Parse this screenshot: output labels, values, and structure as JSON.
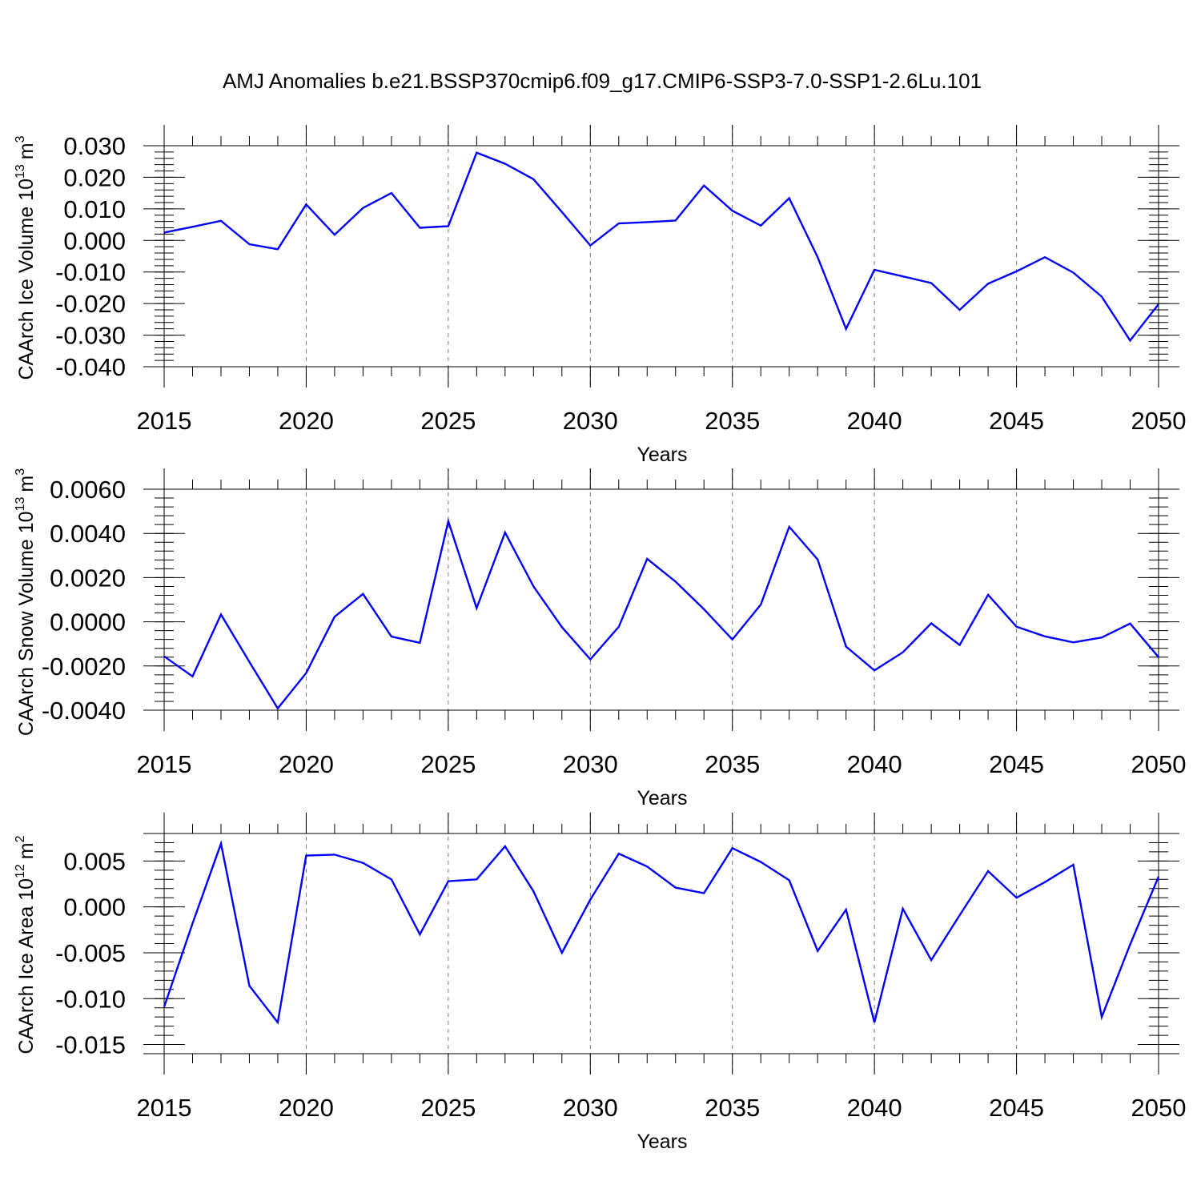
{
  "chart_data": {
    "type": "line",
    "title": "AMJ Anomalies b.e21.BSSP370cmip6.f09_g17.CMIP6-SSP3-7.0-SSP1-2.6Lu.101",
    "line_color": "#0000ff",
    "panels": [
      {
        "ylabel": "CAArch Ice Volume 10",
        "ylabel_exp": "13",
        "ylabel_unit": "m",
        "ylabel_unit_exp": "3",
        "xlabel": "Years",
        "xlim": [
          2015,
          2050
        ],
        "ylim": [
          -0.04,
          0.03
        ],
        "yticks": [
          0.03,
          0.02,
          0.01,
          0.0,
          -0.01,
          -0.02,
          -0.03,
          -0.04
        ],
        "ytick_labels": [
          "0.030",
          "0.020",
          "0.010",
          "0.000",
          "-0.010",
          "-0.020",
          "-0.030",
          "-0.040"
        ],
        "xticks": [
          2015,
          2020,
          2025,
          2030,
          2035,
          2040,
          2045,
          2050
        ],
        "xtick_labels": [
          "2015",
          "2020",
          "2025",
          "2030",
          "2035",
          "2040",
          "2045",
          "2050"
        ],
        "x": [
          2015,
          2016,
          2017,
          2018,
          2019,
          2020,
          2021,
          2022,
          2023,
          2024,
          2025,
          2026,
          2027,
          2028,
          2029,
          2030,
          2031,
          2032,
          2033,
          2034,
          2035,
          2036,
          2037,
          2038,
          2039,
          2040,
          2041,
          2042,
          2043,
          2044,
          2045,
          2046,
          2047,
          2048,
          2049,
          2050
        ],
        "values": [
          0.0025,
          0.0043,
          0.0062,
          -0.0012,
          -0.0028,
          0.0114,
          0.0018,
          0.0103,
          0.015,
          0.004,
          0.0045,
          0.0278,
          0.0243,
          0.0194,
          0.009,
          -0.0016,
          0.0054,
          0.0058,
          0.0063,
          0.0174,
          0.0094,
          0.0047,
          0.0134,
          -0.0053,
          -0.028,
          -0.0093,
          -0.0114,
          -0.0135,
          -0.022,
          -0.0137,
          -0.0098,
          -0.0053,
          -0.0102,
          -0.0178,
          -0.0317,
          -0.0202
        ]
      },
      {
        "ylabel": "CAArch Snow Volume 10",
        "ylabel_exp": "13",
        "ylabel_unit": "m",
        "ylabel_unit_exp": "3",
        "xlabel": "Years",
        "xlim": [
          2015,
          2050
        ],
        "ylim": [
          -0.004,
          0.006
        ],
        "yticks": [
          0.006,
          0.004,
          0.002,
          0.0,
          -0.002,
          -0.004
        ],
        "ytick_labels": [
          "0.0060",
          "0.0040",
          "0.0020",
          "0.0000",
          "-0.0020",
          "-0.0040"
        ],
        "xticks": [
          2015,
          2020,
          2025,
          2030,
          2035,
          2040,
          2045,
          2050
        ],
        "xtick_labels": [
          "2015",
          "2020",
          "2025",
          "2030",
          "2035",
          "2040",
          "2045",
          "2050"
        ],
        "x": [
          2015,
          2016,
          2017,
          2018,
          2019,
          2020,
          2021,
          2022,
          2023,
          2024,
          2025,
          2026,
          2027,
          2028,
          2029,
          2030,
          2031,
          2032,
          2033,
          2034,
          2035,
          2036,
          2037,
          2038,
          2039,
          2040,
          2041,
          2042,
          2043,
          2044,
          2045,
          2046,
          2047,
          2048,
          2049,
          2050
        ],
        "values": [
          -0.00156,
          -0.00247,
          0.00033,
          -0.00182,
          -0.00392,
          -0.00232,
          0.00023,
          0.00126,
          -0.00067,
          -0.00095,
          0.00455,
          0.00062,
          0.00404,
          0.0016,
          -0.00024,
          -0.0017,
          -0.00023,
          0.00285,
          0.00182,
          0.00057,
          -0.0008,
          0.00078,
          0.0043,
          0.00282,
          -0.00112,
          -0.0022,
          -0.00138,
          -7e-05,
          -0.00105,
          0.00122,
          -0.00022,
          -0.00066,
          -0.00093,
          -0.00071,
          -8e-05,
          -0.0016
        ]
      },
      {
        "ylabel": "CAArch Ice Area 10",
        "ylabel_exp": "12",
        "ylabel_unit": "m",
        "ylabel_unit_exp": "2",
        "xlabel": "Years",
        "xlim": [
          2015,
          2050
        ],
        "ylim": [
          -0.016,
          0.008
        ],
        "yticks": [
          0.005,
          0.0,
          -0.005,
          -0.01,
          -0.015
        ],
        "ytick_labels": [
          "0.005",
          "0.000",
          "-0.005",
          "-0.010",
          "-0.015"
        ],
        "xticks": [
          2015,
          2020,
          2025,
          2030,
          2035,
          2040,
          2045,
          2050
        ],
        "xtick_labels": [
          "2015",
          "2020",
          "2025",
          "2030",
          "2035",
          "2040",
          "2045",
          "2050"
        ],
        "x": [
          2015,
          2016,
          2017,
          2018,
          2019,
          2020,
          2021,
          2022,
          2023,
          2024,
          2025,
          2026,
          2027,
          2028,
          2029,
          2030,
          2031,
          2032,
          2033,
          2034,
          2035,
          2036,
          2037,
          2038,
          2039,
          2040,
          2041,
          2042,
          2043,
          2044,
          2045,
          2046,
          2047,
          2048,
          2049,
          2050
        ],
        "values": [
          -0.0109,
          -0.0018,
          0.0069,
          -0.0086,
          -0.0126,
          0.0056,
          0.0057,
          0.0048,
          0.003,
          -0.003,
          0.0028,
          0.003,
          0.0066,
          0.0017,
          -0.005,
          0.0008,
          0.0058,
          0.0044,
          0.0021,
          0.0015,
          0.0064,
          0.0049,
          0.0029,
          -0.0048,
          -0.0003,
          -0.0126,
          -0.0002,
          -0.0058,
          -0.0009,
          0.0039,
          0.001,
          0.0027,
          0.0046,
          -0.012,
          -0.0041,
          0.0033
        ]
      }
    ]
  }
}
